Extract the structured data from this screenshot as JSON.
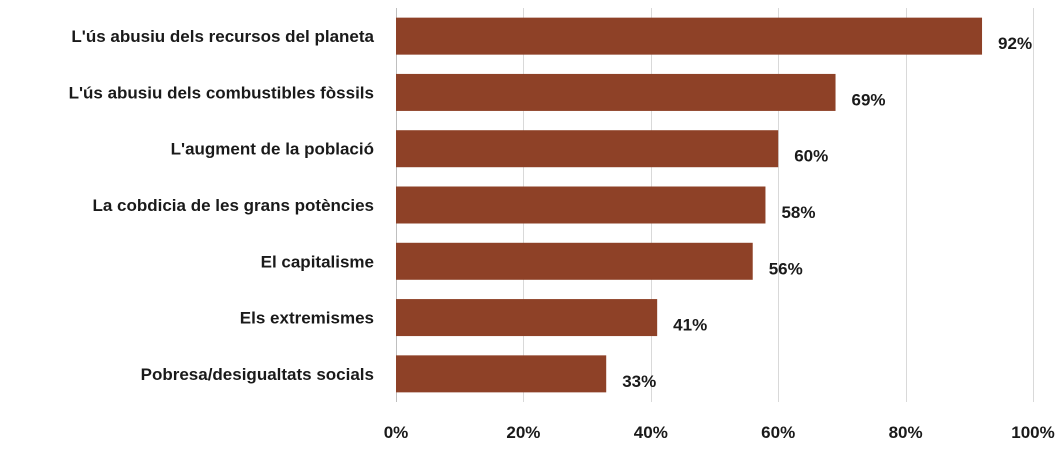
{
  "chart_data": {
    "type": "bar",
    "orientation": "horizontal",
    "categories": [
      "L'ús abusiu dels recursos del planeta",
      "L'ús abusiu dels combustibles fòssils",
      "L'augment de la població",
      "La cobdicia de les grans potències",
      "El capitalisme",
      "Els extremismes",
      "Pobresa/desigualtats socials"
    ],
    "values": [
      92,
      69,
      60,
      58,
      56,
      41,
      33
    ],
    "data_labels": [
      "92%",
      "69%",
      "60%",
      "58%",
      "56%",
      "41%",
      "33%"
    ],
    "xlim": [
      0,
      100
    ],
    "x_ticks": [
      0,
      20,
      40,
      60,
      80,
      100
    ],
    "x_tick_labels": [
      "0%",
      "20%",
      "40%",
      "60%",
      "80%",
      "100%"
    ],
    "grid": true,
    "legend": "none",
    "colors": {
      "bar": "#8e4127",
      "gridline": "#d9d9d9",
      "text": "#1a1a1a"
    }
  }
}
